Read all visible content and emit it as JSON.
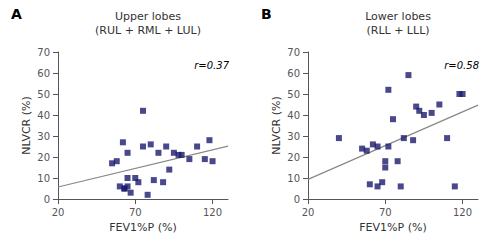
{
  "chart_data": [
    {
      "type": "scatter",
      "title": "Upper lobes\n(RUL + RML + LUL)",
      "panel_label": "A",
      "annotation": "r=0.37",
      "x_label": "FEV1%P (%)",
      "y_label": "NLVCR (%)",
      "xlim": [
        20,
        130
      ],
      "xticks": [
        20,
        70,
        120
      ],
      "ylim": [
        0,
        70
      ],
      "yticks": [
        0,
        10,
        20,
        30,
        40,
        50,
        60,
        70
      ],
      "grid": false,
      "series": [
        {
          "type": "scatter",
          "color": "#1a1a6e",
          "marker": "square",
          "x": [
            55,
            58,
            60,
            62,
            63,
            63,
            65,
            65,
            65,
            67,
            70,
            72,
            75,
            75,
            78,
            80,
            82,
            85,
            88,
            90,
            92,
            95,
            98,
            100,
            105,
            110,
            115,
            118,
            120
          ],
          "values": [
            17,
            18,
            6,
            27,
            5,
            5,
            6,
            22,
            10,
            3,
            10,
            8,
            25,
            42,
            2,
            26,
            9,
            22,
            8,
            25,
            14,
            22,
            21,
            21,
            19,
            25,
            19,
            28,
            18
          ]
        },
        {
          "type": "line",
          "color": "#888888",
          "line_style": "solid",
          "x": [
            20,
            130
          ],
          "values": [
            5.71,
            25.2
          ]
        }
      ]
    },
    {
      "type": "scatter",
      "title": "Lower lobes\n(RLL + LLL)",
      "panel_label": "B",
      "annotation": "r=0.58",
      "x_label": "FEV1%P (%)",
      "y_label": "NLVCR (%)",
      "xlim": [
        20,
        130
      ],
      "xticks": [
        20,
        70,
        120
      ],
      "ylim": [
        0,
        70
      ],
      "yticks": [
        0,
        10,
        20,
        30,
        40,
        50,
        60,
        70
      ],
      "grid": false,
      "series": [
        {
          "type": "scatter",
          "color": "#1a1a6e",
          "marker": "square",
          "x": [
            40,
            55,
            58,
            60,
            62,
            65,
            65,
            68,
            70,
            70,
            72,
            72,
            75,
            78,
            80,
            82,
            85,
            88,
            90,
            92,
            95,
            100,
            105,
            110,
            115,
            118,
            120
          ],
          "values": [
            29,
            24,
            23,
            7,
            26,
            25,
            6,
            8,
            15,
            18,
            52,
            25,
            38,
            18,
            6,
            29,
            59,
            28,
            44,
            42,
            40,
            41,
            45,
            29,
            6,
            50,
            50
          ]
        },
        {
          "type": "line",
          "color": "#888888",
          "line_style": "solid",
          "x": [
            20,
            130
          ],
          "values": [
            9.36,
            44.71
          ]
        }
      ]
    }
  ]
}
